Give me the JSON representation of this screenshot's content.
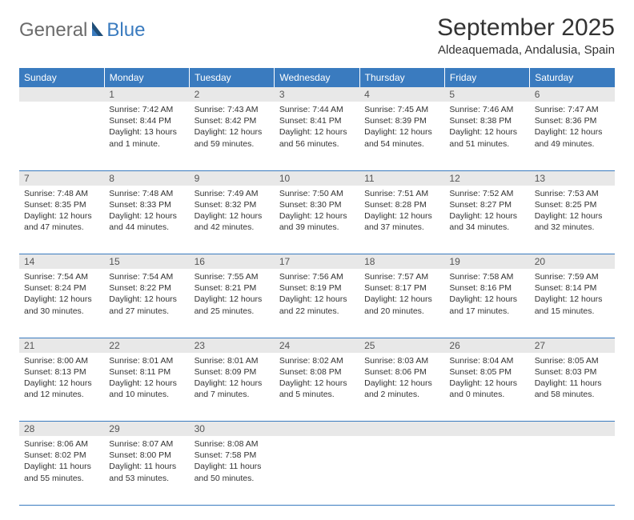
{
  "brand": {
    "gray": "General",
    "blue": "Blue"
  },
  "title": "September 2025",
  "location": "Aldeaquemada, Andalusia, Spain",
  "colors": {
    "header_bg": "#3a7bbf",
    "header_text": "#ffffff",
    "daynum_bg": "#e8e8e8",
    "daynum_text": "#555555",
    "body_text": "#333333",
    "rule": "#3a7bbf",
    "logo_gray": "#6b6b6b",
    "logo_blue": "#3a7bbf",
    "page_bg": "#ffffff"
  },
  "typography": {
    "title_fontsize": 30,
    "location_fontsize": 15,
    "dayheader_fontsize": 12,
    "daynum_fontsize": 12,
    "cell_fontsize": 10.5
  },
  "day_headers": [
    "Sunday",
    "Monday",
    "Tuesday",
    "Wednesday",
    "Thursday",
    "Friday",
    "Saturday"
  ],
  "weeks": [
    {
      "nums": [
        "",
        "1",
        "2",
        "3",
        "4",
        "5",
        "6"
      ],
      "cells": [
        null,
        {
          "sunrise": "Sunrise: 7:42 AM",
          "sunset": "Sunset: 8:44 PM",
          "daylight": "Daylight: 13 hours and 1 minute."
        },
        {
          "sunrise": "Sunrise: 7:43 AM",
          "sunset": "Sunset: 8:42 PM",
          "daylight": "Daylight: 12 hours and 59 minutes."
        },
        {
          "sunrise": "Sunrise: 7:44 AM",
          "sunset": "Sunset: 8:41 PM",
          "daylight": "Daylight: 12 hours and 56 minutes."
        },
        {
          "sunrise": "Sunrise: 7:45 AM",
          "sunset": "Sunset: 8:39 PM",
          "daylight": "Daylight: 12 hours and 54 minutes."
        },
        {
          "sunrise": "Sunrise: 7:46 AM",
          "sunset": "Sunset: 8:38 PM",
          "daylight": "Daylight: 12 hours and 51 minutes."
        },
        {
          "sunrise": "Sunrise: 7:47 AM",
          "sunset": "Sunset: 8:36 PM",
          "daylight": "Daylight: 12 hours and 49 minutes."
        }
      ]
    },
    {
      "nums": [
        "7",
        "8",
        "9",
        "10",
        "11",
        "12",
        "13"
      ],
      "cells": [
        {
          "sunrise": "Sunrise: 7:48 AM",
          "sunset": "Sunset: 8:35 PM",
          "daylight": "Daylight: 12 hours and 47 minutes."
        },
        {
          "sunrise": "Sunrise: 7:48 AM",
          "sunset": "Sunset: 8:33 PM",
          "daylight": "Daylight: 12 hours and 44 minutes."
        },
        {
          "sunrise": "Sunrise: 7:49 AM",
          "sunset": "Sunset: 8:32 PM",
          "daylight": "Daylight: 12 hours and 42 minutes."
        },
        {
          "sunrise": "Sunrise: 7:50 AM",
          "sunset": "Sunset: 8:30 PM",
          "daylight": "Daylight: 12 hours and 39 minutes."
        },
        {
          "sunrise": "Sunrise: 7:51 AM",
          "sunset": "Sunset: 8:28 PM",
          "daylight": "Daylight: 12 hours and 37 minutes."
        },
        {
          "sunrise": "Sunrise: 7:52 AM",
          "sunset": "Sunset: 8:27 PM",
          "daylight": "Daylight: 12 hours and 34 minutes."
        },
        {
          "sunrise": "Sunrise: 7:53 AM",
          "sunset": "Sunset: 8:25 PM",
          "daylight": "Daylight: 12 hours and 32 minutes."
        }
      ]
    },
    {
      "nums": [
        "14",
        "15",
        "16",
        "17",
        "18",
        "19",
        "20"
      ],
      "cells": [
        {
          "sunrise": "Sunrise: 7:54 AM",
          "sunset": "Sunset: 8:24 PM",
          "daylight": "Daylight: 12 hours and 30 minutes."
        },
        {
          "sunrise": "Sunrise: 7:54 AM",
          "sunset": "Sunset: 8:22 PM",
          "daylight": "Daylight: 12 hours and 27 minutes."
        },
        {
          "sunrise": "Sunrise: 7:55 AM",
          "sunset": "Sunset: 8:21 PM",
          "daylight": "Daylight: 12 hours and 25 minutes."
        },
        {
          "sunrise": "Sunrise: 7:56 AM",
          "sunset": "Sunset: 8:19 PM",
          "daylight": "Daylight: 12 hours and 22 minutes."
        },
        {
          "sunrise": "Sunrise: 7:57 AM",
          "sunset": "Sunset: 8:17 PM",
          "daylight": "Daylight: 12 hours and 20 minutes."
        },
        {
          "sunrise": "Sunrise: 7:58 AM",
          "sunset": "Sunset: 8:16 PM",
          "daylight": "Daylight: 12 hours and 17 minutes."
        },
        {
          "sunrise": "Sunrise: 7:59 AM",
          "sunset": "Sunset: 8:14 PM",
          "daylight": "Daylight: 12 hours and 15 minutes."
        }
      ]
    },
    {
      "nums": [
        "21",
        "22",
        "23",
        "24",
        "25",
        "26",
        "27"
      ],
      "cells": [
        {
          "sunrise": "Sunrise: 8:00 AM",
          "sunset": "Sunset: 8:13 PM",
          "daylight": "Daylight: 12 hours and 12 minutes."
        },
        {
          "sunrise": "Sunrise: 8:01 AM",
          "sunset": "Sunset: 8:11 PM",
          "daylight": "Daylight: 12 hours and 10 minutes."
        },
        {
          "sunrise": "Sunrise: 8:01 AM",
          "sunset": "Sunset: 8:09 PM",
          "daylight": "Daylight: 12 hours and 7 minutes."
        },
        {
          "sunrise": "Sunrise: 8:02 AM",
          "sunset": "Sunset: 8:08 PM",
          "daylight": "Daylight: 12 hours and 5 minutes."
        },
        {
          "sunrise": "Sunrise: 8:03 AM",
          "sunset": "Sunset: 8:06 PM",
          "daylight": "Daylight: 12 hours and 2 minutes."
        },
        {
          "sunrise": "Sunrise: 8:04 AM",
          "sunset": "Sunset: 8:05 PM",
          "daylight": "Daylight: 12 hours and 0 minutes."
        },
        {
          "sunrise": "Sunrise: 8:05 AM",
          "sunset": "Sunset: 8:03 PM",
          "daylight": "Daylight: 11 hours and 58 minutes."
        }
      ]
    },
    {
      "nums": [
        "28",
        "29",
        "30",
        "",
        "",
        "",
        ""
      ],
      "cells": [
        {
          "sunrise": "Sunrise: 8:06 AM",
          "sunset": "Sunset: 8:02 PM",
          "daylight": "Daylight: 11 hours and 55 minutes."
        },
        {
          "sunrise": "Sunrise: 8:07 AM",
          "sunset": "Sunset: 8:00 PM",
          "daylight": "Daylight: 11 hours and 53 minutes."
        },
        {
          "sunrise": "Sunrise: 8:08 AM",
          "sunset": "Sunset: 7:58 PM",
          "daylight": "Daylight: 11 hours and 50 minutes."
        },
        null,
        null,
        null,
        null
      ]
    }
  ]
}
